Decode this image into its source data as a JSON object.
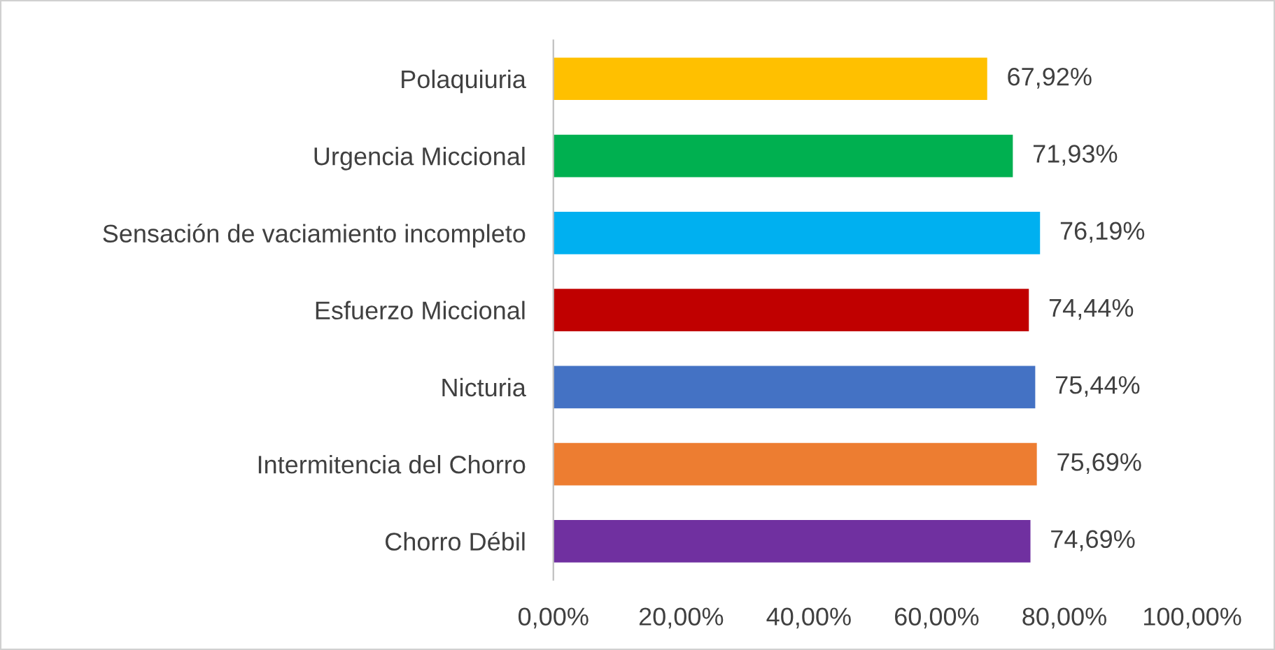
{
  "chart_data": {
    "type": "bar",
    "orientation": "horizontal",
    "categories": [
      "Polaquiuria",
      "Urgencia Miccional",
      "Sensación de vaciamiento incompleto",
      "Esfuerzo Miccional",
      "Nicturia",
      "Intermitencia del Chorro",
      "Chorro Débil"
    ],
    "values": [
      67.92,
      71.93,
      76.19,
      74.44,
      75.44,
      75.69,
      74.69
    ],
    "colors": [
      "#ffc000",
      "#00b050",
      "#00b0f0",
      "#c00000",
      "#4472c4",
      "#ed7d31",
      "#7030a0"
    ],
    "value_labels": [
      "67,92%",
      "71,93%",
      "76,19%",
      "74,44%",
      "75,44%",
      "75,69%",
      "74,69%"
    ],
    "xlim": [
      0,
      100
    ],
    "xticks": [
      {
        "value": 0,
        "label": "0,00%"
      },
      {
        "value": 20,
        "label": "20,00%"
      },
      {
        "value": 40,
        "label": "40,00%"
      },
      {
        "value": 60,
        "label": "60,00%"
      },
      {
        "value": 80,
        "label": "80,00%"
      },
      {
        "value": 100,
        "label": "100,00%"
      }
    ],
    "grid": false,
    "legend": false
  }
}
